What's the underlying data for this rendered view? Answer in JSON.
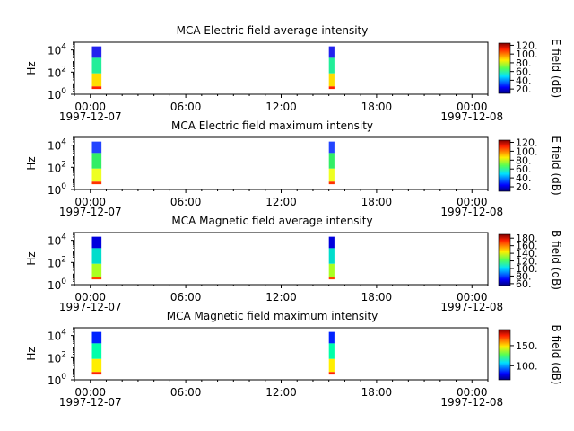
{
  "chart_data": [
    {
      "type": "heatmap",
      "title": "MCA  Electric field average intensity",
      "ylabel": "Hz",
      "y_scale": "log",
      "yticks": [
        {
          "exp": "0",
          "value": 1
        },
        {
          "exp": "2",
          "value": 100
        },
        {
          "exp": "4",
          "value": 10000
        }
      ],
      "xlim_hours": [
        -1,
        25
      ],
      "xticks": [
        {
          "hour": 0,
          "label": "00:00"
        },
        {
          "hour": 6,
          "label": "06:00"
        },
        {
          "hour": 12,
          "label": "12:00"
        },
        {
          "hour": 18,
          "label": "18:00"
        },
        {
          "hour": 24,
          "label": "00:00"
        }
      ],
      "date_labels": [
        {
          "hour": 0,
          "label": "1997-12-07"
        },
        {
          "hour": 24,
          "label": "1997-12-08"
        }
      ],
      "colorbar": {
        "label": "E field (dB)",
        "range": [
          10,
          125
        ],
        "ticks": [
          20,
          40,
          60,
          80,
          100,
          120
        ],
        "tick_labels": [
          "20.",
          "40.",
          "60.",
          "80.",
          "100.",
          "120."
        ]
      },
      "data_blocks": [
        {
          "start_hour": 0.1,
          "end_hour": 0.7
        },
        {
          "start_hour": 15.0,
          "end_hour": 15.35
        }
      ],
      "colors": {
        "top": "#2222ee",
        "mid": "#22ee99",
        "low": "#ffdd00",
        "base": "#ff2200"
      }
    },
    {
      "type": "heatmap",
      "title": "MCA  Electric field maximum intensity",
      "ylabel": "Hz",
      "y_scale": "log",
      "yticks": [
        {
          "exp": "0",
          "value": 1
        },
        {
          "exp": "2",
          "value": 100
        },
        {
          "exp": "4",
          "value": 10000
        }
      ],
      "xlim_hours": [
        -1,
        25
      ],
      "xticks": [
        {
          "hour": 0,
          "label": "00:00"
        },
        {
          "hour": 6,
          "label": "06:00"
        },
        {
          "hour": 12,
          "label": "12:00"
        },
        {
          "hour": 18,
          "label": "18:00"
        },
        {
          "hour": 24,
          "label": "00:00"
        }
      ],
      "date_labels": [
        {
          "hour": 0,
          "label": "1997-12-07"
        },
        {
          "hour": 24,
          "label": "1997-12-08"
        }
      ],
      "colorbar": {
        "label": "E field (dB)",
        "range": [
          10,
          125
        ],
        "ticks": [
          20,
          40,
          60,
          80,
          100,
          120
        ],
        "tick_labels": [
          "20.",
          "40.",
          "60.",
          "80.",
          "100.",
          "120."
        ]
      },
      "data_blocks": [
        {
          "start_hour": 0.1,
          "end_hour": 0.7
        },
        {
          "start_hour": 15.0,
          "end_hour": 15.35
        }
      ],
      "colors": {
        "top": "#2244ff",
        "mid": "#33ee66",
        "low": "#eeff22",
        "base": "#ff3300"
      }
    },
    {
      "type": "heatmap",
      "title": "MCA  Magnetic field average intensity",
      "ylabel": "Hz",
      "y_scale": "log",
      "yticks": [
        {
          "exp": "0",
          "value": 1
        },
        {
          "exp": "2",
          "value": 100
        },
        {
          "exp": "4",
          "value": 10000
        }
      ],
      "xlim_hours": [
        -1,
        25
      ],
      "xticks": [
        {
          "hour": 0,
          "label": "00:00"
        },
        {
          "hour": 6,
          "label": "06:00"
        },
        {
          "hour": 12,
          "label": "12:00"
        },
        {
          "hour": 18,
          "label": "18:00"
        },
        {
          "hour": 24,
          "label": "00:00"
        }
      ],
      "date_labels": [
        {
          "hour": 0,
          "label": "1997-12-07"
        },
        {
          "hour": 24,
          "label": "1997-12-08"
        }
      ],
      "colorbar": {
        "label": "B field (dB)",
        "range": [
          55,
          190
        ],
        "ticks": [
          60,
          80,
          100,
          120,
          140,
          160,
          180
        ],
        "tick_labels": [
          "60.",
          "80.",
          "100.",
          "120.",
          "140.",
          "160.",
          "180."
        ]
      },
      "data_blocks": [
        {
          "start_hour": 0.1,
          "end_hour": 0.7
        },
        {
          "start_hour": 15.0,
          "end_hour": 15.35
        }
      ],
      "colors": {
        "top": "#0000dd",
        "mid": "#00ddcc",
        "low": "#aaff22",
        "base": "#ff4400"
      }
    },
    {
      "type": "heatmap",
      "title": "MCA  Magnetic field maximum intensity",
      "ylabel": "Hz",
      "y_scale": "log",
      "yticks": [
        {
          "exp": "0",
          "value": 1
        },
        {
          "exp": "2",
          "value": 100
        },
        {
          "exp": "4",
          "value": 10000
        }
      ],
      "xlim_hours": [
        -1,
        25
      ],
      "xticks": [
        {
          "hour": 0,
          "label": "00:00"
        },
        {
          "hour": 6,
          "label": "06:00"
        },
        {
          "hour": 12,
          "label": "12:00"
        },
        {
          "hour": 18,
          "label": "18:00"
        },
        {
          "hour": 24,
          "label": "00:00"
        }
      ],
      "date_labels": [
        {
          "hour": 0,
          "label": "1997-12-07"
        },
        {
          "hour": 24,
          "label": "1997-12-08"
        }
      ],
      "colorbar": {
        "label": "B field (dB)",
        "range": [
          65,
          190
        ],
        "ticks": [
          100,
          150
        ],
        "tick_labels": [
          "100.",
          "150."
        ]
      },
      "data_blocks": [
        {
          "start_hour": 0.1,
          "end_hour": 0.7
        },
        {
          "start_hour": 15.0,
          "end_hour": 15.35
        }
      ],
      "colors": {
        "top": "#0022ff",
        "mid": "#00ffaa",
        "low": "#ffee00",
        "base": "#ff2200"
      }
    }
  ]
}
